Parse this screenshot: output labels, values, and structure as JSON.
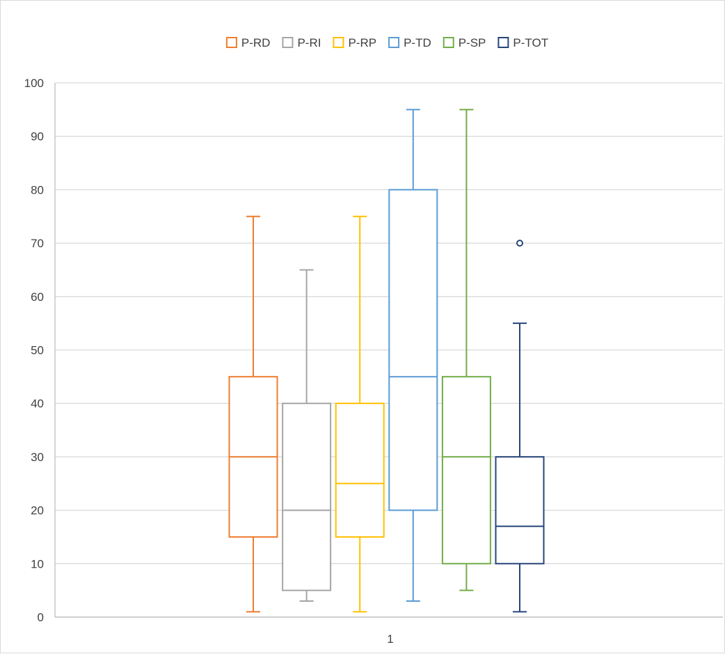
{
  "chart_data": {
    "type": "boxplot",
    "categories": [
      "1"
    ],
    "ylim": [
      0,
      100
    ],
    "yticks": [
      0,
      10,
      20,
      30,
      40,
      50,
      60,
      70,
      80,
      90,
      100
    ],
    "grid": true,
    "legend_position": "top",
    "series": [
      {
        "name": "P-RD",
        "color": "#ED7D31",
        "min": 1,
        "q1": 15,
        "median": 30,
        "q3": 45,
        "max": 75,
        "outliers": []
      },
      {
        "name": "P-RI",
        "color": "#A5A5A5",
        "min": 3,
        "q1": 5,
        "median": 20,
        "q3": 40,
        "max": 65,
        "outliers": []
      },
      {
        "name": "P-RP",
        "color": "#FFC000",
        "min": 1,
        "q1": 15,
        "median": 25,
        "q3": 40,
        "max": 75,
        "outliers": []
      },
      {
        "name": "P-TD",
        "color": "#5B9BD5",
        "min": 3,
        "q1": 20,
        "median": 45,
        "q3": 80,
        "max": 95,
        "outliers": []
      },
      {
        "name": "P-SP",
        "color": "#70AD47",
        "min": 5,
        "q1": 10,
        "median": 30,
        "q3": 45,
        "max": 95,
        "outliers": []
      },
      {
        "name": "P-TOT",
        "color": "#264478",
        "min": 1,
        "q1": 10,
        "median": 17,
        "q3": 30,
        "max": 55,
        "outliers": [
          70
        ]
      }
    ]
  }
}
